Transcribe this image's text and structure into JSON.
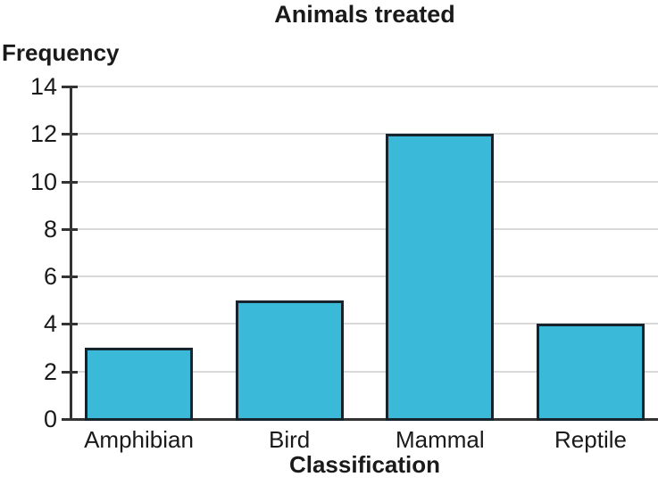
{
  "chart_data": {
    "type": "bar",
    "title": "Animals treated",
    "xlabel": "Classification",
    "ylabel": "Frequency",
    "categories": [
      "Amphibian",
      "Bird",
      "Mammal",
      "Reptile"
    ],
    "values": [
      3,
      5,
      12,
      4
    ],
    "ylim": [
      0,
      14
    ],
    "yticks": [
      0,
      2,
      4,
      6,
      8,
      10,
      12,
      14
    ],
    "grid": true,
    "legend": "none",
    "colors": {
      "bar_fill": "#3ab9d9",
      "bar_border": "#16242e",
      "axis": "#333333",
      "gridline": "#d9d9d9",
      "text": "#1a1a1a",
      "background": "#ffffff"
    }
  }
}
